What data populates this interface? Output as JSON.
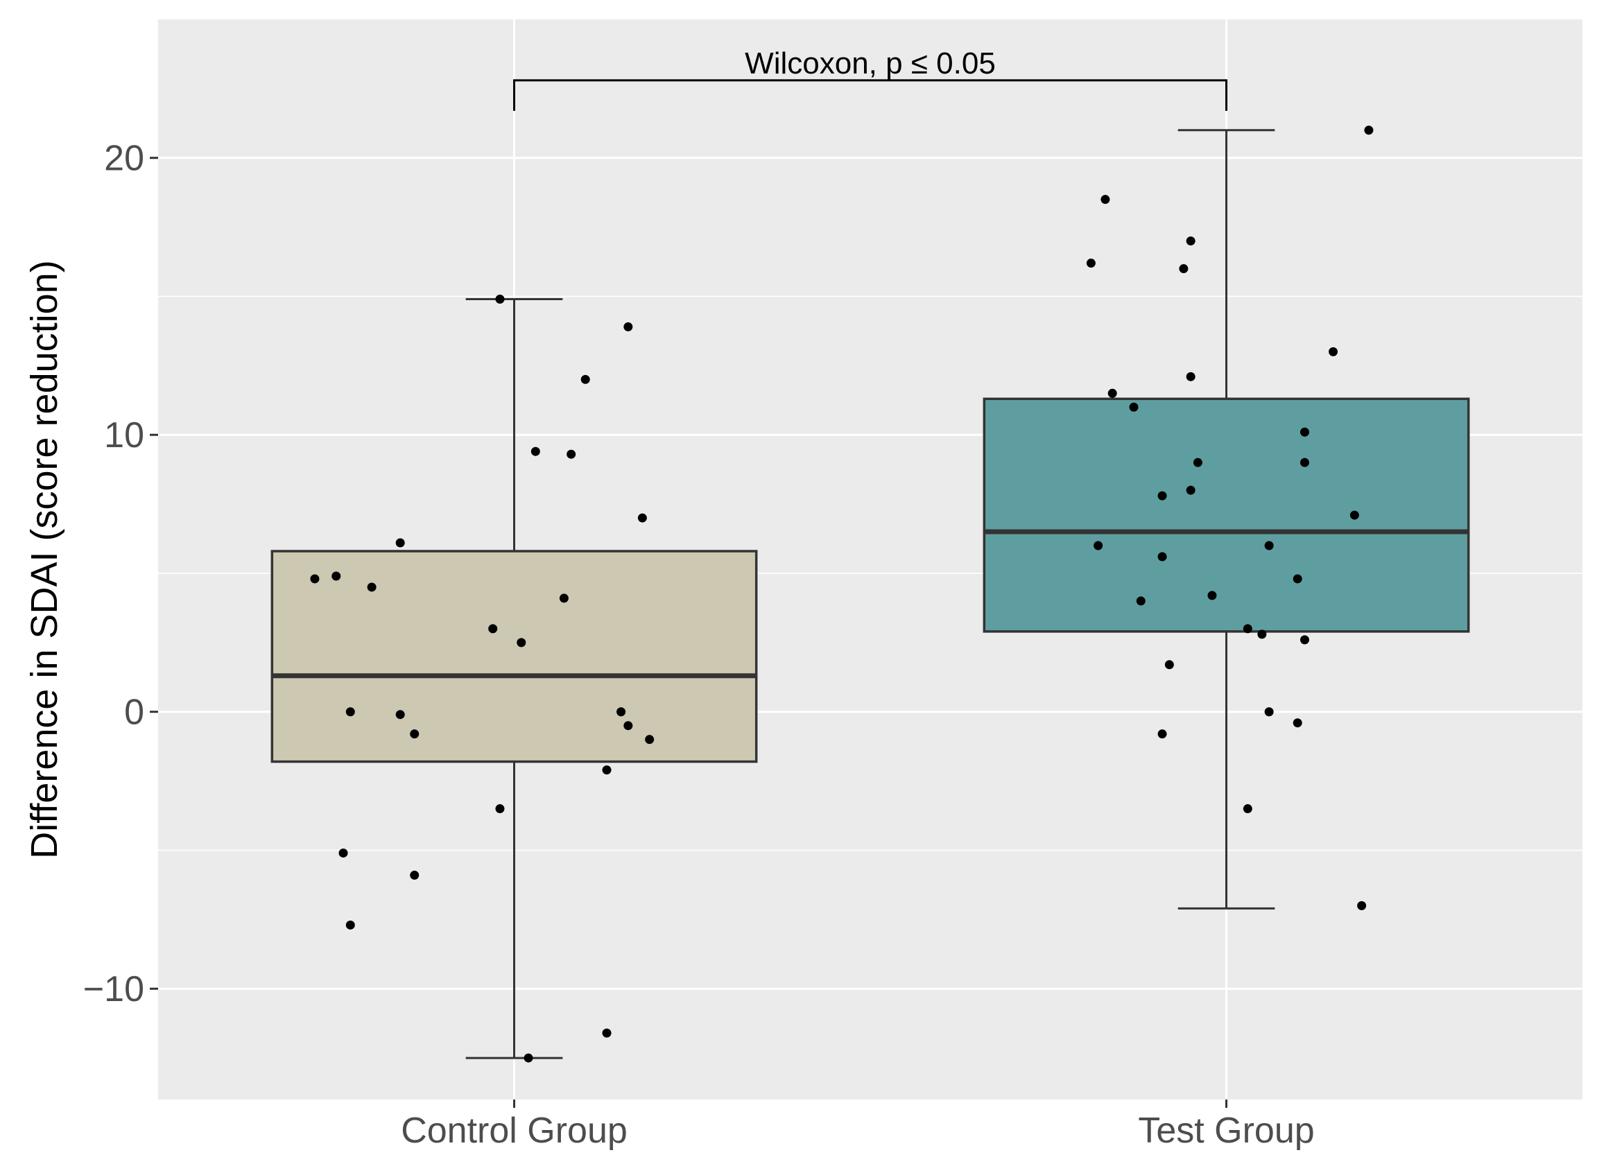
{
  "chart_data": {
    "type": "boxplot",
    "title": "",
    "xlabel": "",
    "ylabel": "Difference in SDAI (score reduction)",
    "ylim": [
      -14,
      25
    ],
    "y_ticks": [
      -10,
      0,
      10,
      20
    ],
    "y_tick_labels": [
      "−10",
      "0",
      "10",
      "20"
    ],
    "grid": true,
    "categories": [
      "Control Group",
      "Test Group"
    ],
    "boxes": [
      {
        "name": "Control Group",
        "fill": "#ccc8b2",
        "whisker_low": -12.5,
        "q1": -1.8,
        "median": 1.3,
        "q3": 5.8,
        "whisker_high": 14.9,
        "points": [
          {
            "jitter": -0.28,
            "y": 4.8
          },
          {
            "jitter": -0.25,
            "y": 4.9
          },
          {
            "jitter": -0.2,
            "y": 4.5
          },
          {
            "jitter": -0.16,
            "y": 6.1
          },
          {
            "jitter": -0.23,
            "y": 0.0
          },
          {
            "jitter": -0.16,
            "y": -0.1
          },
          {
            "jitter": -0.14,
            "y": -0.8
          },
          {
            "jitter": -0.24,
            "y": -5.1
          },
          {
            "jitter": -0.14,
            "y": -5.9
          },
          {
            "jitter": -0.23,
            "y": -7.7
          },
          {
            "jitter": -0.03,
            "y": 3.0
          },
          {
            "jitter": 0.01,
            "y": 2.5
          },
          {
            "jitter": 0.03,
            "y": 9.4
          },
          {
            "jitter": -0.02,
            "y": -3.5
          },
          {
            "jitter": -0.02,
            "y": 14.9
          },
          {
            "jitter": 0.02,
            "y": -12.5
          },
          {
            "jitter": 0.1,
            "y": 12.0
          },
          {
            "jitter": 0.08,
            "y": 9.3
          },
          {
            "jitter": 0.07,
            "y": 4.1
          },
          {
            "jitter": 0.16,
            "y": 13.9
          },
          {
            "jitter": 0.18,
            "y": 7.0
          },
          {
            "jitter": 0.15,
            "y": 0.0
          },
          {
            "jitter": 0.16,
            "y": -0.5
          },
          {
            "jitter": 0.19,
            "y": -1.0
          },
          {
            "jitter": 0.13,
            "y": -2.1
          },
          {
            "jitter": 0.13,
            "y": -11.6
          }
        ]
      },
      {
        "name": "Test Group",
        "fill": "#5f9ea0",
        "whisker_low": -7.1,
        "q1": 2.9,
        "median": 6.5,
        "q3": 11.3,
        "whisker_high": 21.0,
        "points": [
          {
            "jitter": -0.17,
            "y": 18.5
          },
          {
            "jitter": -0.19,
            "y": 16.2
          },
          {
            "jitter": -0.05,
            "y": 17.0
          },
          {
            "jitter": -0.06,
            "y": 16.0
          },
          {
            "jitter": -0.05,
            "y": 12.1
          },
          {
            "jitter": -0.16,
            "y": 11.5
          },
          {
            "jitter": -0.13,
            "y": 11.0
          },
          {
            "jitter": -0.04,
            "y": 9.0
          },
          {
            "jitter": -0.05,
            "y": 8.0
          },
          {
            "jitter": -0.09,
            "y": 7.8
          },
          {
            "jitter": -0.18,
            "y": 6.0
          },
          {
            "jitter": -0.09,
            "y": 5.6
          },
          {
            "jitter": -0.12,
            "y": 4.0
          },
          {
            "jitter": -0.02,
            "y": 4.2
          },
          {
            "jitter": -0.08,
            "y": 1.7
          },
          {
            "jitter": -0.09,
            "y": -0.8
          },
          {
            "jitter": 0.03,
            "y": 3.0
          },
          {
            "jitter": 0.05,
            "y": 2.8
          },
          {
            "jitter": 0.06,
            "y": 0.0
          },
          {
            "jitter": 0.03,
            "y": -3.5
          },
          {
            "jitter": 0.06,
            "y": 6.0
          },
          {
            "jitter": 0.1,
            "y": 4.8
          },
          {
            "jitter": 0.11,
            "y": 2.6
          },
          {
            "jitter": 0.1,
            "y": -0.4
          },
          {
            "jitter": 0.11,
            "y": 10.1
          },
          {
            "jitter": 0.11,
            "y": 9.0
          },
          {
            "jitter": 0.15,
            "y": 13.0
          },
          {
            "jitter": 0.18,
            "y": 7.1
          },
          {
            "jitter": 0.2,
            "y": 21.0
          },
          {
            "jitter": 0.19,
            "y": -7.0
          }
        ]
      }
    ],
    "annotation": {
      "text": "Wilcoxon, p ≤ 0.05",
      "from": "Control Group",
      "to": "Test Group",
      "y": 22.8,
      "tick_end_y": 21.7
    },
    "colors": {
      "panel_background": "#ebebeb",
      "grid_line": "#ffffff",
      "box_outline": "#333333",
      "point": "#000000"
    }
  }
}
